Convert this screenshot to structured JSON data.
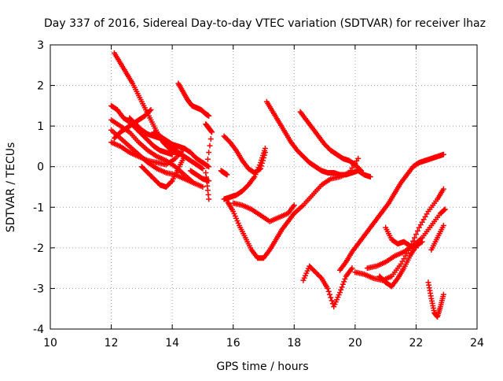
{
  "chart_data": {
    "type": "scatter",
    "title": "Day 337 of 2016, Sidereal Day-to-day VTEC variation (SDTVAR) for receiver lhaz",
    "xlabel": "GPS time / hours",
    "ylabel": "SDTVAR / TECUs",
    "xlim": [
      10,
      24
    ],
    "ylim": [
      -4,
      3
    ],
    "xticks": [
      10,
      12,
      14,
      16,
      18,
      20,
      22,
      24
    ],
    "yticks": [
      -4,
      -3,
      -2,
      -1,
      0,
      1,
      2,
      3
    ],
    "grid": true,
    "marker": "+",
    "color": "#ff0000",
    "series": [
      {
        "x": [
          12.1,
          12.3,
          12.5,
          12.7,
          12.9,
          13.1,
          13.3,
          13.5,
          13.7,
          13.9,
          14.1,
          14.3
        ],
        "y": [
          2.8,
          2.55,
          2.3,
          2.05,
          1.75,
          1.45,
          1.15,
          0.85,
          0.6,
          0.45,
          0.35,
          0.3
        ]
      },
      {
        "x": [
          12.0,
          12.2,
          12.4,
          12.6,
          12.8,
          13.0,
          13.2,
          13.4,
          13.6,
          13.8,
          14.0
        ],
        "y": [
          1.5,
          1.4,
          1.2,
          1.1,
          0.95,
          0.8,
          0.65,
          0.5,
          0.4,
          0.35,
          0.3
        ]
      },
      {
        "x": [
          12.0,
          12.3,
          12.6,
          12.9,
          13.2,
          13.5,
          13.8,
          14.1,
          14.4,
          14.7
        ],
        "y": [
          1.15,
          1.0,
          0.85,
          0.6,
          0.4,
          0.25,
          0.15,
          0.0,
          -0.2,
          -0.4
        ]
      },
      {
        "x": [
          12.0,
          12.3,
          12.6,
          12.9,
          13.2,
          13.5,
          13.8,
          14.1,
          14.4,
          14.7,
          15.0
        ],
        "y": [
          0.9,
          0.7,
          0.5,
          0.3,
          0.1,
          -0.05,
          -0.15,
          -0.2,
          -0.3,
          -0.4,
          -0.5
        ]
      },
      {
        "x": [
          12.0,
          12.3,
          12.6,
          12.9,
          13.2,
          13.5,
          13.8,
          14.1,
          14.4
        ],
        "y": [
          0.6,
          0.5,
          0.35,
          0.25,
          0.15,
          0.1,
          0.05,
          0.2,
          0.45
        ]
      },
      {
        "x": [
          12.1,
          12.3,
          12.5,
          12.7,
          12.9,
          13.1,
          13.3
        ],
        "y": [
          0.7,
          0.85,
          0.95,
          1.05,
          1.15,
          1.25,
          1.4
        ]
      },
      {
        "x": [
          12.6,
          12.8,
          13.0,
          13.2,
          13.4,
          13.6,
          13.8,
          14.0,
          14.2,
          14.4,
          14.6,
          14.8,
          15.0
        ],
        "y": [
          1.2,
          1.05,
          0.9,
          0.8,
          0.75,
          0.7,
          0.6,
          0.5,
          0.35,
          0.25,
          0.15,
          0.05,
          -0.05
        ]
      },
      {
        "x": [
          13.0,
          13.2,
          13.4,
          13.6,
          13.8,
          14.0,
          14.2,
          14.4
        ],
        "y": [
          0.0,
          -0.15,
          -0.3,
          -0.45,
          -0.5,
          -0.35,
          -0.05,
          0.25
        ]
      },
      {
        "x": [
          13.4,
          13.6,
          13.8,
          14.0,
          14.2,
          14.4,
          14.6,
          14.8,
          15.0,
          15.2
        ],
        "y": [
          0.85,
          0.75,
          0.65,
          0.55,
          0.5,
          0.45,
          0.35,
          0.2,
          0.1,
          0.0
        ]
      },
      {
        "x": [
          14.2,
          14.35,
          14.5,
          14.65,
          14.8,
          14.95,
          15.1,
          15.2
        ],
        "y": [
          2.05,
          1.85,
          1.65,
          1.5,
          1.45,
          1.4,
          1.3,
          1.25
        ]
      },
      {
        "x": [
          14.6,
          14.8,
          15.0,
          15.2
        ],
        "y": [
          -0.1,
          -0.2,
          -0.3,
          -0.35
        ]
      },
      {
        "x": [
          15.1,
          15.2,
          15.3,
          15.1,
          15.2
        ],
        "y": [
          1.05,
          0.95,
          0.85,
          -0.15,
          -0.8
        ]
      },
      {
        "x": [
          15.6,
          15.7,
          15.8
        ],
        "y": [
          -0.1,
          -0.15,
          -0.2
        ]
      },
      {
        "x": [
          15.7,
          15.9,
          16.1,
          16.3,
          16.5,
          16.7,
          16.9,
          17.05
        ],
        "y": [
          0.75,
          0.6,
          0.4,
          0.15,
          -0.05,
          -0.15,
          -0.05,
          0.35
        ]
      },
      {
        "x": [
          15.7,
          15.9,
          16.1,
          16.3,
          16.5,
          16.7,
          16.9,
          17.05
        ],
        "y": [
          -0.8,
          -0.75,
          -0.7,
          -0.6,
          -0.45,
          -0.25,
          0.1,
          0.45
        ]
      },
      {
        "x": [
          15.8,
          16.0,
          16.2,
          16.4,
          16.6,
          16.8,
          17.0,
          17.2,
          17.4,
          17.6,
          17.8,
          18.0
        ],
        "y": [
          -0.85,
          -1.1,
          -1.45,
          -1.75,
          -2.05,
          -2.25,
          -2.25,
          -2.05,
          -1.8,
          -1.55,
          -1.35,
          -1.15
        ]
      },
      {
        "x": [
          16.0,
          16.3,
          16.6,
          16.9,
          17.2,
          17.5,
          17.8,
          18.0
        ],
        "y": [
          -0.9,
          -0.95,
          -1.05,
          -1.2,
          -1.35,
          -1.25,
          -1.15,
          -0.95
        ]
      },
      {
        "x": [
          17.1,
          17.3,
          17.5,
          17.7,
          17.9,
          18.1,
          18.3,
          18.5,
          18.7,
          18.9,
          19.1,
          19.3,
          19.5,
          19.7,
          19.9,
          20.1,
          20.3,
          20.5
        ],
        "y": [
          1.6,
          1.35,
          1.1,
          0.85,
          0.6,
          0.4,
          0.25,
          0.1,
          0.0,
          -0.1,
          -0.15,
          -0.15,
          -0.2,
          -0.2,
          -0.15,
          -0.1,
          -0.2,
          -0.25
        ]
      },
      {
        "x": [
          18.2,
          18.4,
          18.6,
          18.8,
          19.0,
          19.2,
          19.4,
          19.6,
          19.8,
          20.0,
          20.2
        ],
        "y": [
          1.35,
          1.15,
          0.95,
          0.75,
          0.55,
          0.4,
          0.3,
          0.2,
          0.15,
          0.05,
          -0.1
        ]
      },
      {
        "x": [
          18.0,
          18.3,
          18.6,
          18.9,
          19.2,
          19.5,
          19.8,
          20.1
        ],
        "y": [
          -1.15,
          -0.95,
          -0.7,
          -0.45,
          -0.3,
          -0.25,
          -0.15,
          0.2
        ]
      },
      {
        "x": [
          18.3,
          18.5,
          18.7,
          18.9,
          19.1,
          19.3,
          19.5,
          19.7,
          19.9
        ],
        "y": [
          -2.8,
          -2.45,
          -2.6,
          -2.75,
          -3.0,
          -3.45,
          -3.1,
          -2.7,
          -2.5
        ]
      },
      {
        "x": [
          19.5,
          19.7,
          19.9,
          20.1,
          20.3,
          20.5,
          20.7,
          20.9,
          21.1,
          21.3,
          21.5,
          21.7,
          21.9,
          22.1,
          22.3,
          22.5,
          22.7,
          22.9
        ],
        "y": [
          -2.55,
          -2.35,
          -2.1,
          -1.9,
          -1.7,
          -1.5,
          -1.3,
          -1.1,
          -0.9,
          -0.65,
          -0.4,
          -0.2,
          0.0,
          0.1,
          0.15,
          0.2,
          0.25,
          0.3
        ]
      },
      {
        "x": [
          20.0,
          20.3,
          20.6,
          20.9,
          21.2,
          21.5,
          21.8,
          22.1,
          22.4,
          22.7,
          22.9
        ],
        "y": [
          -2.6,
          -2.65,
          -2.75,
          -2.8,
          -2.7,
          -2.4,
          -2.0,
          -1.5,
          -1.1,
          -0.8,
          -0.55
        ]
      },
      {
        "x": [
          20.4,
          20.7,
          21.0,
          21.3,
          21.6,
          21.9,
          22.2,
          22.5,
          22.8,
          22.95
        ],
        "y": [
          -2.5,
          -2.45,
          -2.35,
          -2.2,
          -2.1,
          -1.95,
          -1.75,
          -1.45,
          -1.15,
          -1.05
        ]
      },
      {
        "x": [
          20.8,
          21.0,
          21.2,
          21.4,
          21.6,
          21.8,
          22.0,
          22.2
        ],
        "y": [
          -2.7,
          -2.85,
          -2.95,
          -2.75,
          -2.5,
          -2.2,
          -1.95,
          -1.85
        ]
      },
      {
        "x": [
          21.0,
          21.2,
          21.4,
          21.6,
          21.8,
          22.0
        ],
        "y": [
          -1.5,
          -1.8,
          -1.9,
          -1.85,
          -1.95,
          -2.0
        ]
      },
      {
        "x": [
          22.4,
          22.5,
          22.6,
          22.7,
          22.8,
          22.9
        ],
        "y": [
          -2.85,
          -3.25,
          -3.6,
          -3.7,
          -3.45,
          -3.15
        ]
      },
      {
        "x": [
          22.5,
          22.7,
          22.9
        ],
        "y": [
          -2.05,
          -1.75,
          -1.45
        ]
      }
    ]
  }
}
